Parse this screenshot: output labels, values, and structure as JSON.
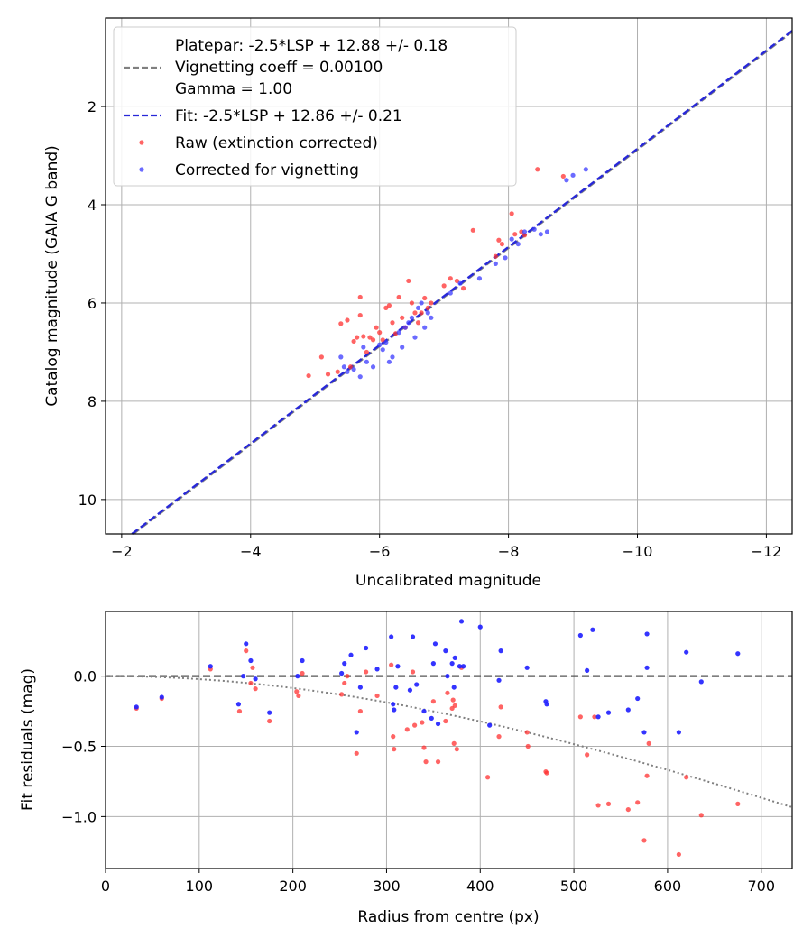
{
  "chart_data": [
    {
      "type": "scatter",
      "xlabel": "Uncalibrated magnitude",
      "ylabel": "Catalog magnitude (GAIA G band)",
      "xlim": [
        -1.75,
        -12.4
      ],
      "ylim": [
        10.7,
        0.2
      ],
      "x_ticks": [
        -2,
        -4,
        -6,
        -8,
        -10,
        -12
      ],
      "x_tick_labels": [
        "−2",
        "−4",
        "−6",
        "−8",
        "−10",
        "−12"
      ],
      "y_ticks": [
        2,
        4,
        6,
        8,
        10
      ],
      "y_tick_labels": [
        "2",
        "4",
        "6",
        "8",
        "10"
      ],
      "grid": true,
      "legend": {
        "position": "upper-left",
        "entries": [
          {
            "label": "Platepar: -2.5*LSP + 12.88 +/- 0.18\nVignetting coeff = 0.00100\nGamma = 1.00",
            "style": "dashed",
            "color": "#808080"
          },
          {
            "label": "Fit: -2.5*LSP + 12.86 +/- 0.21",
            "style": "dashed",
            "color": "#2828d8"
          },
          {
            "label": "Raw (extinction corrected)",
            "style": "marker",
            "color": "#ff3030"
          },
          {
            "label": "Corrected for vignetting",
            "style": "marker",
            "color": "#3a3aff"
          }
        ]
      },
      "lines": [
        {
          "name": "Platepar",
          "slope": 1.0,
          "intercept": 12.88,
          "color": "#808080"
        },
        {
          "name": "Fit",
          "slope": 1.0,
          "intercept": 12.86,
          "color": "#2828d8"
        }
      ],
      "series": [
        {
          "name": "Raw (extinction corrected)",
          "color": "#ff3030",
          "points": [
            [
              -4.9,
              7.48
            ],
            [
              -5.1,
              7.1
            ],
            [
              -5.2,
              7.45
            ],
            [
              -5.35,
              7.4
            ],
            [
              -5.4,
              6.42
            ],
            [
              -5.5,
              6.35
            ],
            [
              -5.55,
              7.3
            ],
            [
              -5.6,
              6.78
            ],
            [
              -5.65,
              6.7
            ],
            [
              -5.7,
              5.88
            ],
            [
              -5.7,
              6.25
            ],
            [
              -5.75,
              6.68
            ],
            [
              -5.8,
              7.0
            ],
            [
              -5.85,
              6.7
            ],
            [
              -5.9,
              6.75
            ],
            [
              -5.95,
              6.5
            ],
            [
              -6.0,
              6.6
            ],
            [
              -6.05,
              6.75
            ],
            [
              -6.1,
              6.1
            ],
            [
              -6.15,
              6.05
            ],
            [
              -6.2,
              6.4
            ],
            [
              -6.25,
              6.62
            ],
            [
              -6.3,
              5.88
            ],
            [
              -6.35,
              6.3
            ],
            [
              -6.4,
              6.5
            ],
            [
              -6.45,
              5.55
            ],
            [
              -6.5,
              6.0
            ],
            [
              -6.55,
              6.2
            ],
            [
              -6.6,
              6.4
            ],
            [
              -6.65,
              6.2
            ],
            [
              -6.7,
              5.9
            ],
            [
              -6.75,
              6.1
            ],
            [
              -6.8,
              6.0
            ],
            [
              -7.0,
              5.65
            ],
            [
              -7.1,
              5.5
            ],
            [
              -7.2,
              5.55
            ],
            [
              -7.3,
              5.7
            ],
            [
              -7.45,
              4.52
            ],
            [
              -7.8,
              5.05
            ],
            [
              -7.85,
              4.72
            ],
            [
              -7.9,
              4.8
            ],
            [
              -8.05,
              4.18
            ],
            [
              -8.1,
              4.6
            ],
            [
              -8.2,
              4.55
            ],
            [
              -8.25,
              4.62
            ],
            [
              -8.45,
              3.28
            ],
            [
              -8.85,
              3.42
            ]
          ]
        },
        {
          "name": "Corrected for vignetting",
          "color": "#3a3aff",
          "points": [
            [
              -5.4,
              7.1
            ],
            [
              -5.45,
              7.3
            ],
            [
              -5.5,
              7.4
            ],
            [
              -5.6,
              7.35
            ],
            [
              -5.7,
              7.5
            ],
            [
              -5.75,
              6.9
            ],
            [
              -5.8,
              7.2
            ],
            [
              -5.9,
              7.3
            ],
            [
              -6.0,
              6.85
            ],
            [
              -6.05,
              6.95
            ],
            [
              -6.1,
              6.8
            ],
            [
              -6.15,
              7.2
            ],
            [
              -6.2,
              7.1
            ],
            [
              -6.3,
              6.6
            ],
            [
              -6.35,
              6.9
            ],
            [
              -6.4,
              6.5
            ],
            [
              -6.45,
              6.4
            ],
            [
              -6.5,
              6.3
            ],
            [
              -6.55,
              6.7
            ],
            [
              -6.6,
              6.1
            ],
            [
              -6.65,
              6.0
            ],
            [
              -6.7,
              6.5
            ],
            [
              -6.75,
              6.2
            ],
            [
              -6.8,
              6.3
            ],
            [
              -7.1,
              5.8
            ],
            [
              -7.25,
              5.6
            ],
            [
              -7.55,
              5.5
            ],
            [
              -7.8,
              5.2
            ],
            [
              -7.95,
              5.08
            ],
            [
              -8.05,
              4.7
            ],
            [
              -8.15,
              4.8
            ],
            [
              -8.25,
              4.55
            ],
            [
              -8.4,
              4.5
            ],
            [
              -8.5,
              4.6
            ],
            [
              -8.6,
              4.55
            ],
            [
              -8.9,
              3.5
            ],
            [
              -9.0,
              3.4
            ],
            [
              -9.2,
              3.28
            ]
          ]
        }
      ]
    },
    {
      "type": "scatter",
      "xlabel": "Radius from centre (px)",
      "ylabel": "Fit residuals (mag)",
      "xlim": [
        0,
        733
      ],
      "ylim": [
        -1.37,
        0.46
      ],
      "x_ticks": [
        0,
        100,
        200,
        300,
        400,
        500,
        600,
        700
      ],
      "x_tick_labels": [
        "0",
        "100",
        "200",
        "300",
        "400",
        "500",
        "600",
        "700"
      ],
      "y_ticks": [
        0.0,
        -0.5,
        -1.0
      ],
      "y_tick_labels": [
        "0.0",
        "−0.5",
        "−1.0"
      ],
      "grid": true,
      "reference_line": {
        "y": 0.0,
        "style": "dashed",
        "color": "#555555"
      },
      "model_curve": {
        "name": "vignetting model",
        "style": "dotted",
        "color": "#808080",
        "coefficient": 0.001
      },
      "series": [
        {
          "name": "Raw (extinction corrected)",
          "color": "#ff3030",
          "points": [
            [
              33,
              -0.23
            ],
            [
              60,
              -0.16
            ],
            [
              112,
              0.05
            ],
            [
              143,
              -0.25
            ],
            [
              150,
              0.18
            ],
            [
              155,
              -0.05
            ],
            [
              157,
              0.06
            ],
            [
              160,
              -0.09
            ],
            [
              175,
              -0.32
            ],
            [
              204,
              -0.11
            ],
            [
              206,
              -0.14
            ],
            [
              210,
              0.02
            ],
            [
              252,
              -0.13
            ],
            [
              255,
              -0.05
            ],
            [
              258,
              0.0
            ],
            [
              268,
              -0.55
            ],
            [
              272,
              -0.25
            ],
            [
              278,
              0.03
            ],
            [
              290,
              -0.14
            ],
            [
              305,
              0.08
            ],
            [
              307,
              -0.43
            ],
            [
              308,
              -0.52
            ],
            [
              322,
              -0.38
            ],
            [
              328,
              0.03
            ],
            [
              330,
              -0.35
            ],
            [
              338,
              -0.33
            ],
            [
              340,
              -0.51
            ],
            [
              342,
              -0.61
            ],
            [
              350,
              -0.18
            ],
            [
              355,
              -0.61
            ],
            [
              363,
              -0.32
            ],
            [
              365,
              -0.12
            ],
            [
              370,
              -0.23
            ],
            [
              371,
              -0.17
            ],
            [
              372,
              -0.48
            ],
            [
              373,
              -0.21
            ],
            [
              375,
              -0.52
            ],
            [
              380,
              0.06
            ],
            [
              408,
              -0.72
            ],
            [
              420,
              -0.43
            ],
            [
              422,
              -0.22
            ],
            [
              450,
              -0.4
            ],
            [
              451,
              -0.5
            ],
            [
              470,
              -0.68
            ],
            [
              471,
              -0.69
            ],
            [
              507,
              -0.29
            ],
            [
              514,
              -0.56
            ],
            [
              522,
              -0.29
            ],
            [
              526,
              -0.92
            ],
            [
              537,
              -0.91
            ],
            [
              558,
              -0.95
            ],
            [
              568,
              -0.9
            ],
            [
              575,
              -1.17
            ],
            [
              578,
              -0.71
            ],
            [
              580,
              -0.48
            ],
            [
              612,
              -1.27
            ],
            [
              620,
              -0.72
            ],
            [
              636,
              -0.99
            ],
            [
              675,
              -0.91
            ]
          ]
        },
        {
          "name": "Corrected for vignetting",
          "color": "#1e1eff",
          "points": [
            [
              33,
              -0.22
            ],
            [
              60,
              -0.15
            ],
            [
              112,
              0.07
            ],
            [
              142,
              -0.2
            ],
            [
              147,
              0.0
            ],
            [
              150,
              0.23
            ],
            [
              155,
              0.11
            ],
            [
              160,
              -0.02
            ],
            [
              175,
              -0.26
            ],
            [
              205,
              0.0
            ],
            [
              210,
              0.11
            ],
            [
              252,
              0.02
            ],
            [
              255,
              0.09
            ],
            [
              262,
              0.15
            ],
            [
              268,
              -0.4
            ],
            [
              272,
              -0.08
            ],
            [
              278,
              0.2
            ],
            [
              290,
              0.05
            ],
            [
              305,
              0.28
            ],
            [
              307,
              -0.2
            ],
            [
              308,
              -0.24
            ],
            [
              310,
              -0.08
            ],
            [
              312,
              0.07
            ],
            [
              328,
              0.28
            ],
            [
              325,
              -0.1
            ],
            [
              332,
              -0.06
            ],
            [
              340,
              -0.25
            ],
            [
              348,
              -0.3
            ],
            [
              350,
              0.09
            ],
            [
              352,
              0.23
            ],
            [
              355,
              -0.34
            ],
            [
              363,
              0.18
            ],
            [
              365,
              0.0
            ],
            [
              370,
              0.09
            ],
            [
              372,
              -0.08
            ],
            [
              373,
              0.13
            ],
            [
              378,
              0.07
            ],
            [
              380,
              0.39
            ],
            [
              382,
              0.07
            ],
            [
              400,
              0.35
            ],
            [
              410,
              -0.35
            ],
            [
              420,
              -0.03
            ],
            [
              422,
              0.18
            ],
            [
              450,
              0.06
            ],
            [
              470,
              -0.18
            ],
            [
              471,
              -0.2
            ],
            [
              507,
              0.29
            ],
            [
              514,
              0.04
            ],
            [
              520,
              0.33
            ],
            [
              526,
              -0.29
            ],
            [
              537,
              -0.26
            ],
            [
              558,
              -0.24
            ],
            [
              568,
              -0.16
            ],
            [
              575,
              -0.4
            ],
            [
              578,
              0.06
            ],
            [
              578,
              0.3
            ],
            [
              612,
              -0.4
            ],
            [
              620,
              0.17
            ],
            [
              636,
              -0.04
            ],
            [
              675,
              0.16
            ]
          ]
        }
      ]
    }
  ]
}
